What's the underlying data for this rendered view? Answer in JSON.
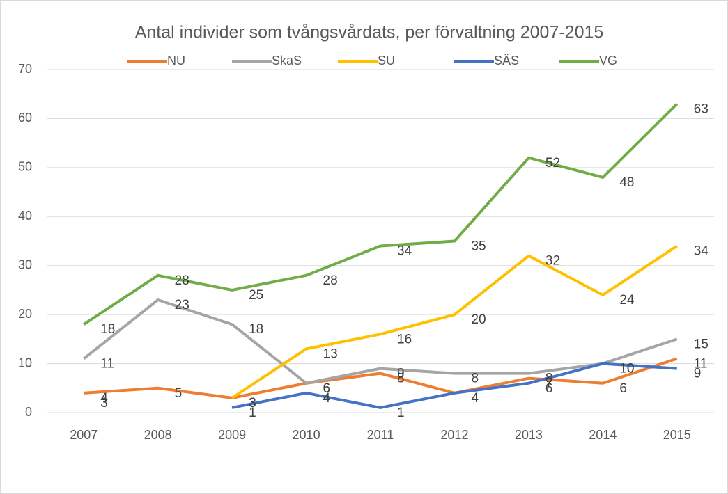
{
  "chart_data": {
    "type": "line",
    "title": "Antal individer som tvångsvårdats, per förvaltning 2007-2015",
    "categories": [
      "2007",
      "2008",
      "2009",
      "2010",
      "2011",
      "2012",
      "2013",
      "2014",
      "2015"
    ],
    "series": [
      {
        "name": "NU",
        "color": "#ed7d31",
        "values": [
          4,
          5,
          3,
          6,
          8,
          4,
          7,
          6,
          11
        ]
      },
      {
        "name": "SkaS",
        "color": "#a5a5a5",
        "values": [
          11,
          23,
          18,
          6,
          9,
          8,
          8,
          10,
          15
        ]
      },
      {
        "name": "SU",
        "color": "#ffc000",
        "values": [
          3,
          null,
          3,
          13,
          16,
          20,
          32,
          24,
          34
        ]
      },
      {
        "name": "SÄS",
        "color": "#4472c4",
        "values": [
          null,
          null,
          1,
          4,
          1,
          4,
          6,
          10,
          9
        ]
      },
      {
        "name": "VG",
        "color": "#70ad47",
        "values": [
          18,
          28,
          25,
          28,
          34,
          35,
          52,
          48,
          63
        ]
      }
    ],
    "ylim": [
      0,
      70
    ],
    "yticks": [
      0,
      10,
      20,
      30,
      40,
      50,
      60,
      70
    ],
    "grid": true,
    "legend": "top"
  }
}
